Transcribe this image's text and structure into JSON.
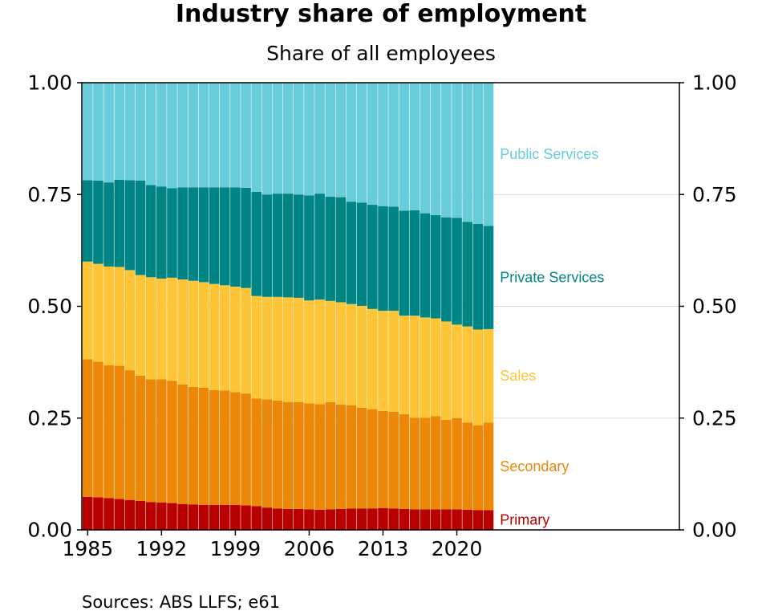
{
  "title": "Industry share of employment",
  "subtitle": "Share of all employees",
  "source": "Sources: ABS LLFS; e61",
  "colors": {
    "Primary": "#b80000",
    "Secondary": "#ec8707",
    "Sales": "#fdc537",
    "Private Services": "#008484",
    "Public Services": "#69cdd9"
  },
  "chart_data": {
    "type": "bar",
    "stacked": true,
    "x": [
      1985,
      1986,
      1987,
      1988,
      1989,
      1990,
      1991,
      1992,
      1993,
      1994,
      1995,
      1996,
      1997,
      1998,
      1999,
      2000,
      2001,
      2002,
      2003,
      2004,
      2005,
      2006,
      2007,
      2008,
      2009,
      2010,
      2011,
      2012,
      2013,
      2014,
      2015,
      2016,
      2017,
      2018,
      2019,
      2020,
      2021,
      2022,
      2023
    ],
    "x_ticks": [
      "1985",
      "1992",
      "1999",
      "2006",
      "2013",
      "2020"
    ],
    "y_ticks": [
      "0.00",
      "0.25",
      "0.50",
      "0.75",
      "1.00"
    ],
    "ylim": [
      0,
      1
    ],
    "grid": true,
    "series": [
      {
        "name": "Primary",
        "values": [
          0.074,
          0.073,
          0.071,
          0.069,
          0.067,
          0.065,
          0.062,
          0.061,
          0.06,
          0.058,
          0.057,
          0.056,
          0.056,
          0.056,
          0.056,
          0.055,
          0.053,
          0.05,
          0.048,
          0.047,
          0.047,
          0.046,
          0.045,
          0.046,
          0.047,
          0.048,
          0.048,
          0.048,
          0.049,
          0.048,
          0.047,
          0.046,
          0.046,
          0.046,
          0.046,
          0.046,
          0.045,
          0.044,
          0.044
        ]
      },
      {
        "name": "Secondary",
        "values": [
          0.308,
          0.303,
          0.297,
          0.298,
          0.29,
          0.28,
          0.275,
          0.276,
          0.273,
          0.267,
          0.263,
          0.262,
          0.257,
          0.256,
          0.252,
          0.25,
          0.241,
          0.242,
          0.241,
          0.239,
          0.239,
          0.237,
          0.236,
          0.24,
          0.233,
          0.231,
          0.225,
          0.222,
          0.217,
          0.216,
          0.212,
          0.205,
          0.205,
          0.208,
          0.2,
          0.204,
          0.195,
          0.19,
          0.196
        ]
      },
      {
        "name": "Sales",
        "values": [
          0.218,
          0.219,
          0.221,
          0.221,
          0.224,
          0.225,
          0.228,
          0.225,
          0.231,
          0.235,
          0.237,
          0.236,
          0.237,
          0.235,
          0.236,
          0.236,
          0.229,
          0.229,
          0.232,
          0.234,
          0.233,
          0.23,
          0.234,
          0.226,
          0.229,
          0.226,
          0.228,
          0.224,
          0.224,
          0.226,
          0.22,
          0.228,
          0.224,
          0.219,
          0.22,
          0.209,
          0.215,
          0.214,
          0.209
        ]
      },
      {
        "name": "Private Services",
        "values": [
          0.182,
          0.186,
          0.188,
          0.195,
          0.201,
          0.211,
          0.206,
          0.206,
          0.2,
          0.206,
          0.209,
          0.212,
          0.216,
          0.219,
          0.222,
          0.224,
          0.233,
          0.229,
          0.231,
          0.232,
          0.231,
          0.235,
          0.237,
          0.233,
          0.235,
          0.229,
          0.231,
          0.233,
          0.234,
          0.233,
          0.235,
          0.236,
          0.233,
          0.231,
          0.233,
          0.239,
          0.234,
          0.236,
          0.231
        ]
      },
      {
        "name": "Public Services",
        "values": [
          0.218,
          0.219,
          0.223,
          0.217,
          0.218,
          0.219,
          0.229,
          0.232,
          0.236,
          0.234,
          0.234,
          0.234,
          0.234,
          0.234,
          0.234,
          0.235,
          0.244,
          0.25,
          0.248,
          0.248,
          0.25,
          0.252,
          0.248,
          0.255,
          0.256,
          0.266,
          0.268,
          0.273,
          0.276,
          0.277,
          0.286,
          0.285,
          0.292,
          0.296,
          0.301,
          0.302,
          0.311,
          0.316,
          0.32
        ]
      }
    ],
    "legend": "inline-right"
  }
}
